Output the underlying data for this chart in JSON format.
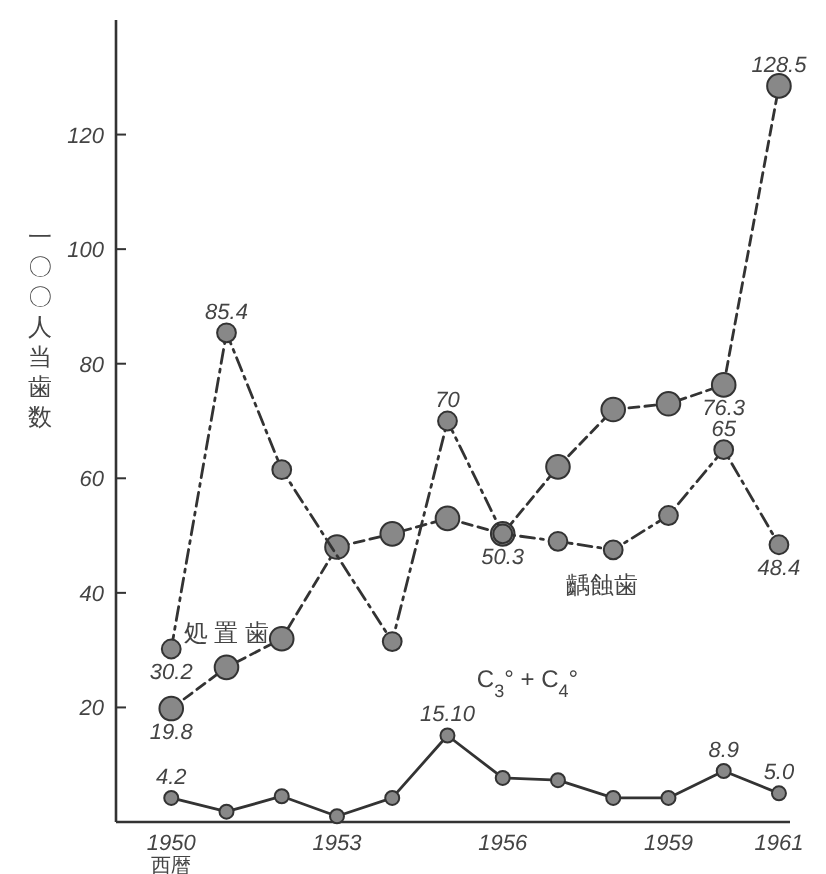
{
  "chart_data": {
    "type": "line",
    "ylabel": "一〇〇人当歯数",
    "xlabel": "西暦",
    "x": [
      1950,
      1951,
      1952,
      1953,
      1954,
      1955,
      1956,
      1957,
      1958,
      1959,
      1960,
      1961
    ],
    "xlim": [
      1949,
      1961.2
    ],
    "xticks": [
      1950,
      1953,
      1956,
      1959,
      1961
    ],
    "ylim": [
      0,
      140
    ],
    "yticks": [
      20,
      40,
      60,
      80,
      100,
      120
    ],
    "grid": false,
    "marker": "circle",
    "series": [
      {
        "name": "処 置 歯",
        "color": "#333333",
        "line_style": "dashed",
        "values": [
          19.8,
          27,
          32,
          48,
          50.3,
          53,
          50.3,
          62,
          72,
          73,
          76.3,
          128.5
        ],
        "value_labels": [
          "19.8",
          null,
          null,
          null,
          null,
          null,
          null,
          null,
          null,
          null,
          "76.3",
          "128.5"
        ]
      },
      {
        "name": "齲蝕歯",
        "color": "#333333",
        "line_style": "dashdot",
        "values": [
          30.2,
          85.4,
          61.5,
          null,
          31.5,
          70,
          50.3,
          49,
          47.5,
          53.5,
          65,
          48.4
        ],
        "value_labels": [
          "30.2",
          "85.4",
          null,
          null,
          null,
          "70",
          "50.3",
          null,
          null,
          null,
          "65",
          "48.4"
        ]
      },
      {
        "name": "C$_{3}$° + C$_{4}$°",
        "color": "#333333",
        "line_style": "solid",
        "values": [
          4.2,
          1.8,
          4.5,
          1,
          4.2,
          15.1,
          7.7,
          7.3,
          4.2,
          4.2,
          8.9,
          5.0
        ],
        "value_labels": [
          "4.2",
          null,
          null,
          null,
          null,
          "15.10",
          null,
          null,
          null,
          null,
          "8.9",
          "5.0"
        ]
      }
    ]
  }
}
